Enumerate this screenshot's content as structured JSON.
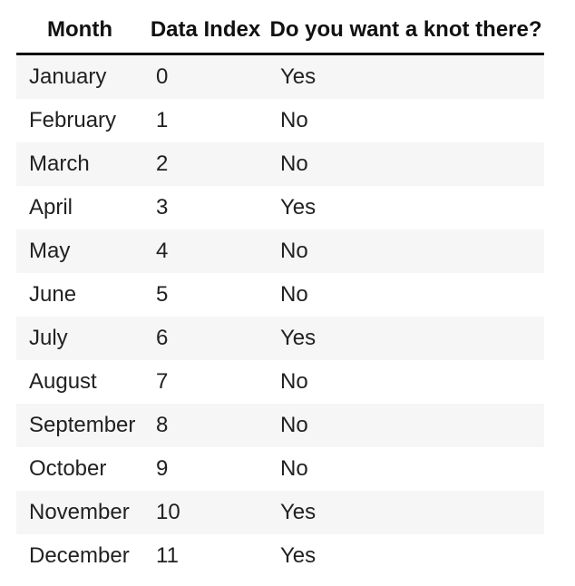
{
  "table": {
    "columns": [
      "Month",
      "Data Index",
      "Do you want a knot there?"
    ],
    "rows": [
      {
        "month": "January",
        "data_index": "0",
        "knot": "Yes"
      },
      {
        "month": "February",
        "data_index": "1",
        "knot": "No"
      },
      {
        "month": "March",
        "data_index": "2",
        "knot": "No"
      },
      {
        "month": "April",
        "data_index": "3",
        "knot": "Yes"
      },
      {
        "month": "May",
        "data_index": "4",
        "knot": "No"
      },
      {
        "month": "June",
        "data_index": "5",
        "knot": "No"
      },
      {
        "month": "July",
        "data_index": "6",
        "knot": "Yes"
      },
      {
        "month": "August",
        "data_index": "7",
        "knot": "No"
      },
      {
        "month": "September",
        "data_index": "8",
        "knot": "No"
      },
      {
        "month": "October",
        "data_index": "9",
        "knot": "No"
      },
      {
        "month": "November",
        "data_index": "10",
        "knot": "Yes"
      },
      {
        "month": "December",
        "data_index": "11",
        "knot": "Yes"
      }
    ],
    "colors": {
      "stripe": "#f6f6f6",
      "header_border": "#0c0c0c",
      "header_text": "#111111",
      "body_text": "#212121",
      "background": "#ffffff"
    }
  },
  "chart_data": {
    "type": "table",
    "title": "",
    "columns": [
      "Month",
      "Data Index",
      "Do you want a knot there?"
    ],
    "rows": [
      [
        "January",
        0,
        "Yes"
      ],
      [
        "February",
        1,
        "No"
      ],
      [
        "March",
        2,
        "No"
      ],
      [
        "April",
        3,
        "Yes"
      ],
      [
        "May",
        4,
        "No"
      ],
      [
        "June",
        5,
        "No"
      ],
      [
        "July",
        6,
        "Yes"
      ],
      [
        "August",
        7,
        "No"
      ],
      [
        "September",
        8,
        "No"
      ],
      [
        "October",
        9,
        "No"
      ],
      [
        "November",
        10,
        "Yes"
      ],
      [
        "December",
        11,
        "Yes"
      ]
    ],
    "layout_hints": {
      "header_bold": true,
      "header_align": "center",
      "body_align": "left",
      "zebra_striping": "odd-rows-gray",
      "grid": "header-underline-only"
    }
  }
}
